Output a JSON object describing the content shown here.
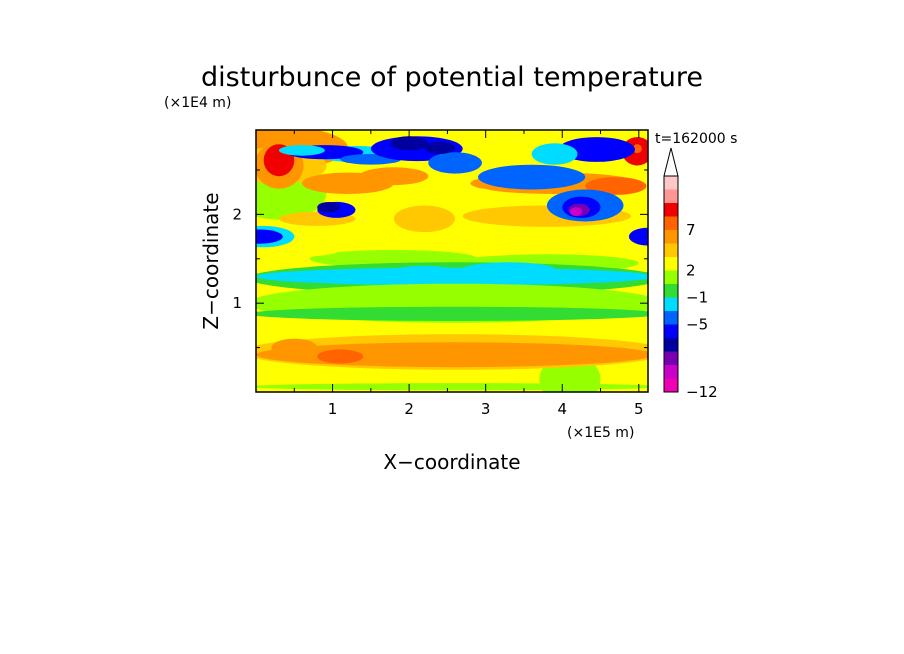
{
  "chart_data": {
    "type": "heatmap",
    "title": "disturbunce of potential temperature",
    "time_label": "t=162000 s",
    "xlabel": "X−coordinate",
    "ylabel": "Z−coordinate",
    "x_unit": "(×1E5 m)",
    "y_unit": "(×1E4 m)",
    "xlim": [
      0,
      5.12
    ],
    "ylim": [
      0,
      2.95
    ],
    "x_ticks": [
      "1",
      "2",
      "3",
      "4",
      "5"
    ],
    "y_ticks": [
      "1",
      "2"
    ],
    "colorbar": {
      "labels": [
        "−12",
        "−5",
        "−1",
        "2",
        "7"
      ],
      "extend_top": true,
      "colors": [
        "#f000b4",
        "#c800c8",
        "#7800b4",
        "#0000a0",
        "#0000ff",
        "#0064ff",
        "#00dcff",
        "#32dc32",
        "#96ff00",
        "#ffff00",
        "#ffc800",
        "#ff9600",
        "#ff6400",
        "#f00000",
        "#ff9696",
        "#ffc8c8"
      ]
    }
  }
}
